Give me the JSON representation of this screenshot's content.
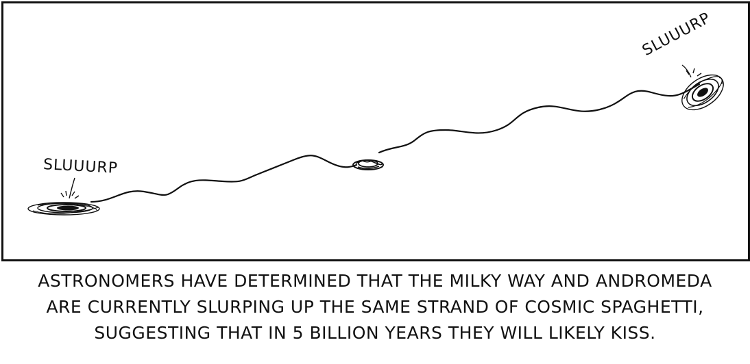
{
  "comic": {
    "sound_left": "SLUUURP",
    "sound_right": "SLUUURP",
    "caption_lines": [
      "ASTRONOMERS HAVE DETERMINED THAT THE MILKY WAY AND ANDROMEDA",
      "ARE CURRENTLY SLURPING UP THE SAME STRAND OF COSMIC SPAGHETTI,",
      "SUGGESTING THAT IN 5 BILLION YEARS THEY WILL LIKELY KISS."
    ]
  },
  "icons": {
    "left": "spiral-galaxy-icon",
    "middle": "spaghetti-clump-icon",
    "right": "spiral-galaxy-icon"
  }
}
